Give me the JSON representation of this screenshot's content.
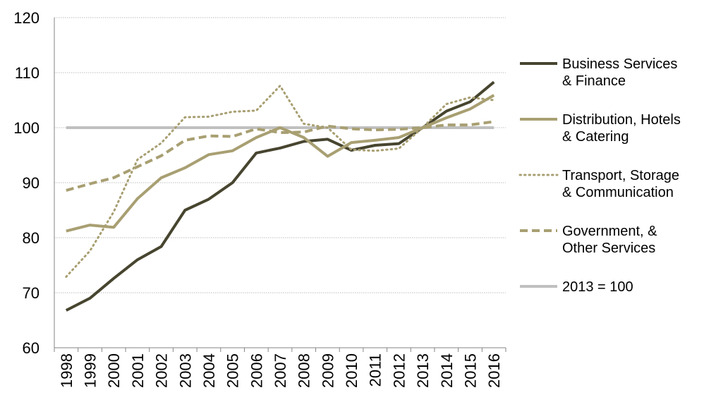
{
  "chart_data": {
    "type": "line",
    "title": "",
    "xlabel": "",
    "ylabel": "",
    "ylim": [
      60,
      120
    ],
    "yticks": [
      60,
      70,
      80,
      90,
      100,
      110,
      120
    ],
    "grid": true,
    "legend_position": "right",
    "categories": [
      "1998",
      "1999",
      "2000",
      "2001",
      "2002",
      "2003",
      "2004",
      "2005",
      "2006",
      "2007",
      "2008",
      "2009",
      "2010",
      "2011",
      "2012",
      "2013",
      "2014",
      "2015",
      "2016"
    ],
    "series": [
      {
        "name": "Business Services & Finance",
        "legend_lines": [
          "Business Services",
          "& Finance"
        ],
        "color": "#47452f",
        "style": "solid",
        "values": [
          66.8,
          69.0,
          72.6,
          76.0,
          78.4,
          85.0,
          87.0,
          90.0,
          95.4,
          96.3,
          97.5,
          97.9,
          95.9,
          96.8,
          97.1,
          100.0,
          103.0,
          104.7,
          108.3
        ]
      },
      {
        "name": "Distribution, Hotels & Catering",
        "legend_lines": [
          "Distribution, Hotels",
          "& Catering"
        ],
        "color": "#a89f72",
        "style": "solid",
        "values": [
          81.2,
          82.3,
          81.9,
          87.1,
          90.9,
          92.7,
          95.1,
          95.8,
          98.2,
          100.0,
          98.2,
          94.8,
          97.3,
          97.7,
          98.2,
          100.0,
          101.8,
          103.4,
          105.9
        ]
      },
      {
        "name": "Transport, Storage & Communication",
        "legend_lines": [
          "Transport, Storage",
          "& Communication"
        ],
        "color": "#a89f72",
        "style": "dotted",
        "values": [
          72.9,
          77.6,
          84.7,
          94.2,
          97.2,
          101.9,
          102.0,
          102.9,
          103.1,
          107.6,
          100.7,
          100.0,
          96.0,
          95.8,
          96.2,
          100.0,
          104.3,
          105.5,
          105.0
        ]
      },
      {
        "name": "Government, & Other Services",
        "legend_lines": [
          "Government, &",
          "Other Services"
        ],
        "color": "#a89f72",
        "style": "dashed",
        "values": [
          88.6,
          89.8,
          90.9,
          92.9,
          94.9,
          97.7,
          98.5,
          98.4,
          99.8,
          99.1,
          99.2,
          100.3,
          99.8,
          99.6,
          99.7,
          100.0,
          100.5,
          100.5,
          101.1
        ]
      },
      {
        "name": "2013 = 100",
        "legend_lines": [
          "2013 = 100"
        ],
        "color": "#c0c0c0",
        "style": "solid",
        "values": [
          100,
          100,
          100,
          100,
          100,
          100,
          100,
          100,
          100,
          100,
          100,
          100,
          100,
          100,
          100,
          100,
          100,
          100,
          100
        ]
      }
    ]
  }
}
